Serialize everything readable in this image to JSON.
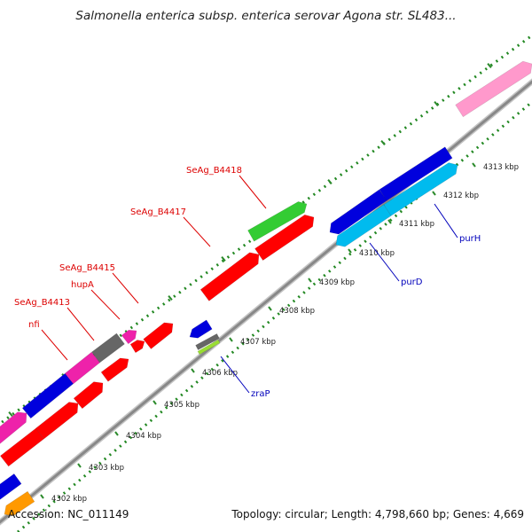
{
  "header": {
    "title": "Salmonella enterica subsp. enterica serovar Agona str. SL483..."
  },
  "footer": {
    "accession": "Accession: NC_011149",
    "summary": "Topology: circular; Length: 4,798,660 bp; Genes: 4,669"
  },
  "map": {
    "ticks": [
      {
        "label": "4302 kbp"
      },
      {
        "label": "4303 kbp"
      },
      {
        "label": "4304 kbp"
      },
      {
        "label": "4305 kbp"
      },
      {
        "label": "4306 kbp"
      },
      {
        "label": "4307 kbp"
      },
      {
        "label": "4308 kbp"
      },
      {
        "label": "4309 kbp"
      },
      {
        "label": "4310 kbp"
      },
      {
        "label": "4311 kbp"
      },
      {
        "label": "4312 kbp"
      },
      {
        "label": "4313 kbp"
      }
    ],
    "gene_labels": [
      {
        "name": "SeAg_B4418",
        "color": "#dd0000"
      },
      {
        "name": "SeAg_B4417",
        "color": "#dd0000"
      },
      {
        "name": "SeAg_B4415",
        "color": "#dd0000"
      },
      {
        "name": "hupA",
        "color": "#dd0000"
      },
      {
        "name": "SeAg_B4413",
        "color": "#dd0000"
      },
      {
        "name": "nfi",
        "color": "#dd0000"
      },
      {
        "name": "purH",
        "color": "#0000bb"
      },
      {
        "name": "purD",
        "color": "#0000bb"
      },
      {
        "name": "zraP",
        "color": "#0000bb"
      }
    ],
    "colors": {
      "red": "#ff0000",
      "green": "#33cc33",
      "blue": "#0000dd",
      "cyan": "#00bbee",
      "magenta": "#ee22aa",
      "pink": "#ff99cc",
      "gray": "#666666",
      "orange": "#ff9900",
      "backbone": "#888888",
      "tick_dots": "#228822"
    }
  }
}
